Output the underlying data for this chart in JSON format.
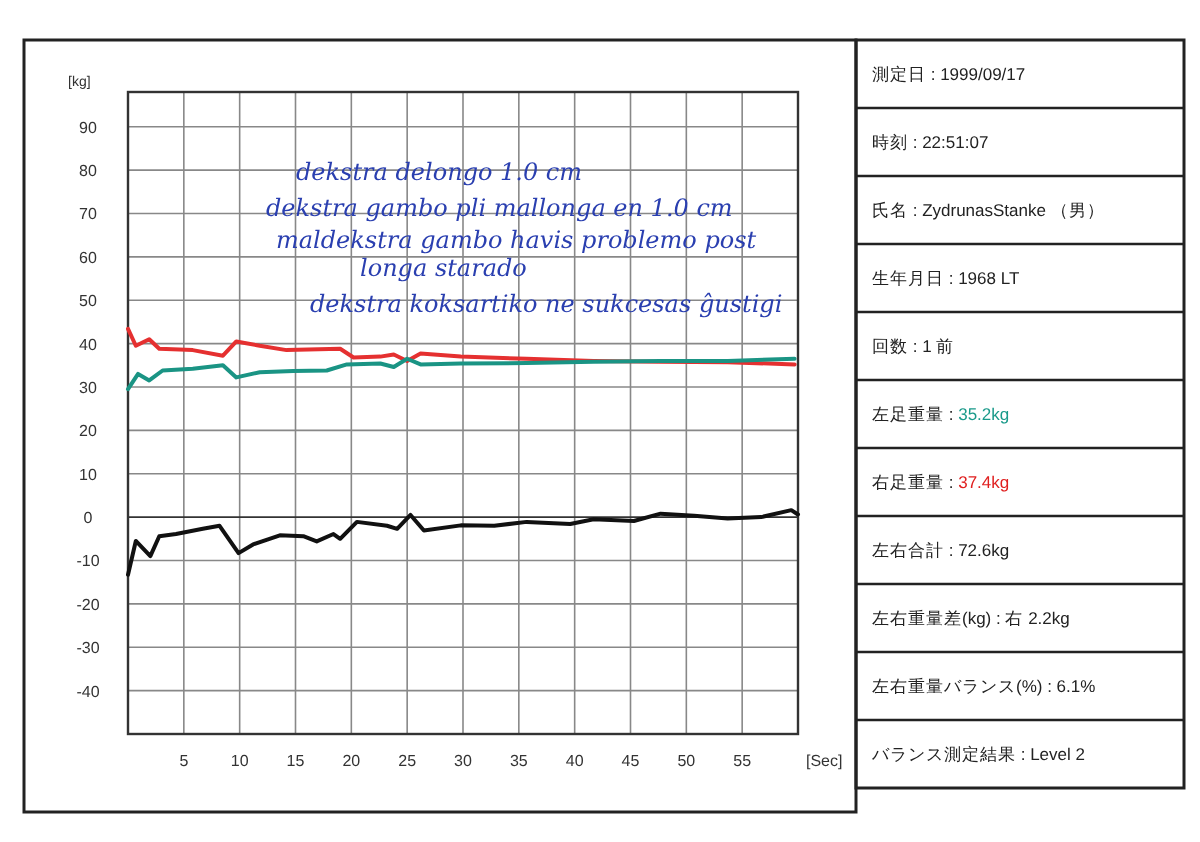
{
  "chart_data": [
    {
      "type": "line",
      "xlabel": "[Sec]",
      "ylabel": "[kg]",
      "xlim": [
        0,
        60
      ],
      "ylim": [
        -50,
        98
      ],
      "xticks": [
        5,
        10,
        15,
        20,
        25,
        30,
        35,
        40,
        45,
        50,
        55
      ],
      "yticks": [
        -40,
        -30,
        -20,
        -10,
        0,
        10,
        20,
        30,
        40,
        50,
        60,
        70,
        80,
        90
      ],
      "grid": true,
      "line_style": "solid",
      "marker": "none",
      "annotations": [
        "dekstra delongo 1.0 cm",
        "dekstra gambo pli mallonga en 1.0 cm",
        "maldekstra gambo havis problemo post",
        "longa starado",
        "dekstra koksartiko ne sukcesas ĝustigi"
      ],
      "series": [
        {
          "color": "#e53030",
          "x": [
            0,
            0.7,
            1.9,
            2.8,
            5.8,
            8.5,
            9.7,
            11.8,
            14.2,
            19,
            20.2,
            22.6,
            23.8,
            25,
            26.2,
            29.8,
            35.7,
            41.7,
            47.7,
            53.7,
            59.7
          ],
          "values": [
            43.4,
            39.5,
            41,
            38.8,
            38.5,
            37.2,
            40.5,
            39.5,
            38.5,
            38.8,
            36.8,
            37,
            37.5,
            36,
            37.7,
            37,
            36.5,
            36,
            35.8,
            35.7,
            35.2
          ]
        },
        {
          "color": "#1a9484",
          "x": [
            0,
            0.9,
            1.9,
            3.1,
            5.8,
            8.5,
            9.7,
            11.8,
            14.8,
            17.8,
            19.6,
            22.6,
            23.8,
            25,
            26.2,
            29.8,
            35.7,
            41.7,
            47.7,
            53.7,
            59.7
          ],
          "values": [
            29.5,
            33,
            31.5,
            33.8,
            34.2,
            35,
            32.2,
            33.4,
            33.7,
            33.8,
            35.2,
            35.4,
            34.6,
            36.5,
            35.2,
            35.4,
            35.5,
            35.8,
            36,
            36,
            36.5
          ]
        },
        {
          "color": "#111111",
          "x": [
            0,
            0.7,
            2,
            2.8,
            4.3,
            6.7,
            8.2,
            9.9,
            11.2,
            13.6,
            15.7,
            16.9,
            18.4,
            19,
            20.5,
            23.2,
            24.1,
            25.3,
            26.5,
            29.8,
            32.8,
            35.7,
            39.6,
            41.7,
            45.3,
            47.7,
            50.7,
            53.7,
            56.7,
            59.4,
            60
          ],
          "values": [
            -13.3,
            -5.5,
            -9,
            -4.4,
            -3.9,
            -2.7,
            -2,
            -8.3,
            -6.3,
            -4.2,
            -4.4,
            -5.6,
            -3.9,
            -5,
            -1.1,
            -2,
            -2.7,
            0.5,
            -3.1,
            -1.9,
            -2,
            -1.1,
            -1.6,
            -0.5,
            -0.9,
            0.8,
            0.3,
            -0.3,
            0,
            1.6,
            0.6
          ]
        }
      ]
    },
    {
      "type": "other",
      "annotations": [
        "測定日 :  1999/09/17",
        "時刻 :  22:51:07",
        "氏名 :  ZydrunasStanke （男）",
        "生年月日 :  1968 LT",
        "回数 :  1  前",
        "左足重量 :  35.2kg",
        "右足重量 :  37.4kg",
        "左右合計 :  72.6kg",
        "左右重量差(kg) :  右  2.2kg",
        "左右重量バランス(%) :  6.1%",
        "バランス測定結果 :  Level 2"
      ],
      "colors": [
        null,
        null,
        null,
        null,
        null,
        "#1a9a8a",
        "#e02020",
        null,
        null,
        null,
        null
      ]
    }
  ]
}
